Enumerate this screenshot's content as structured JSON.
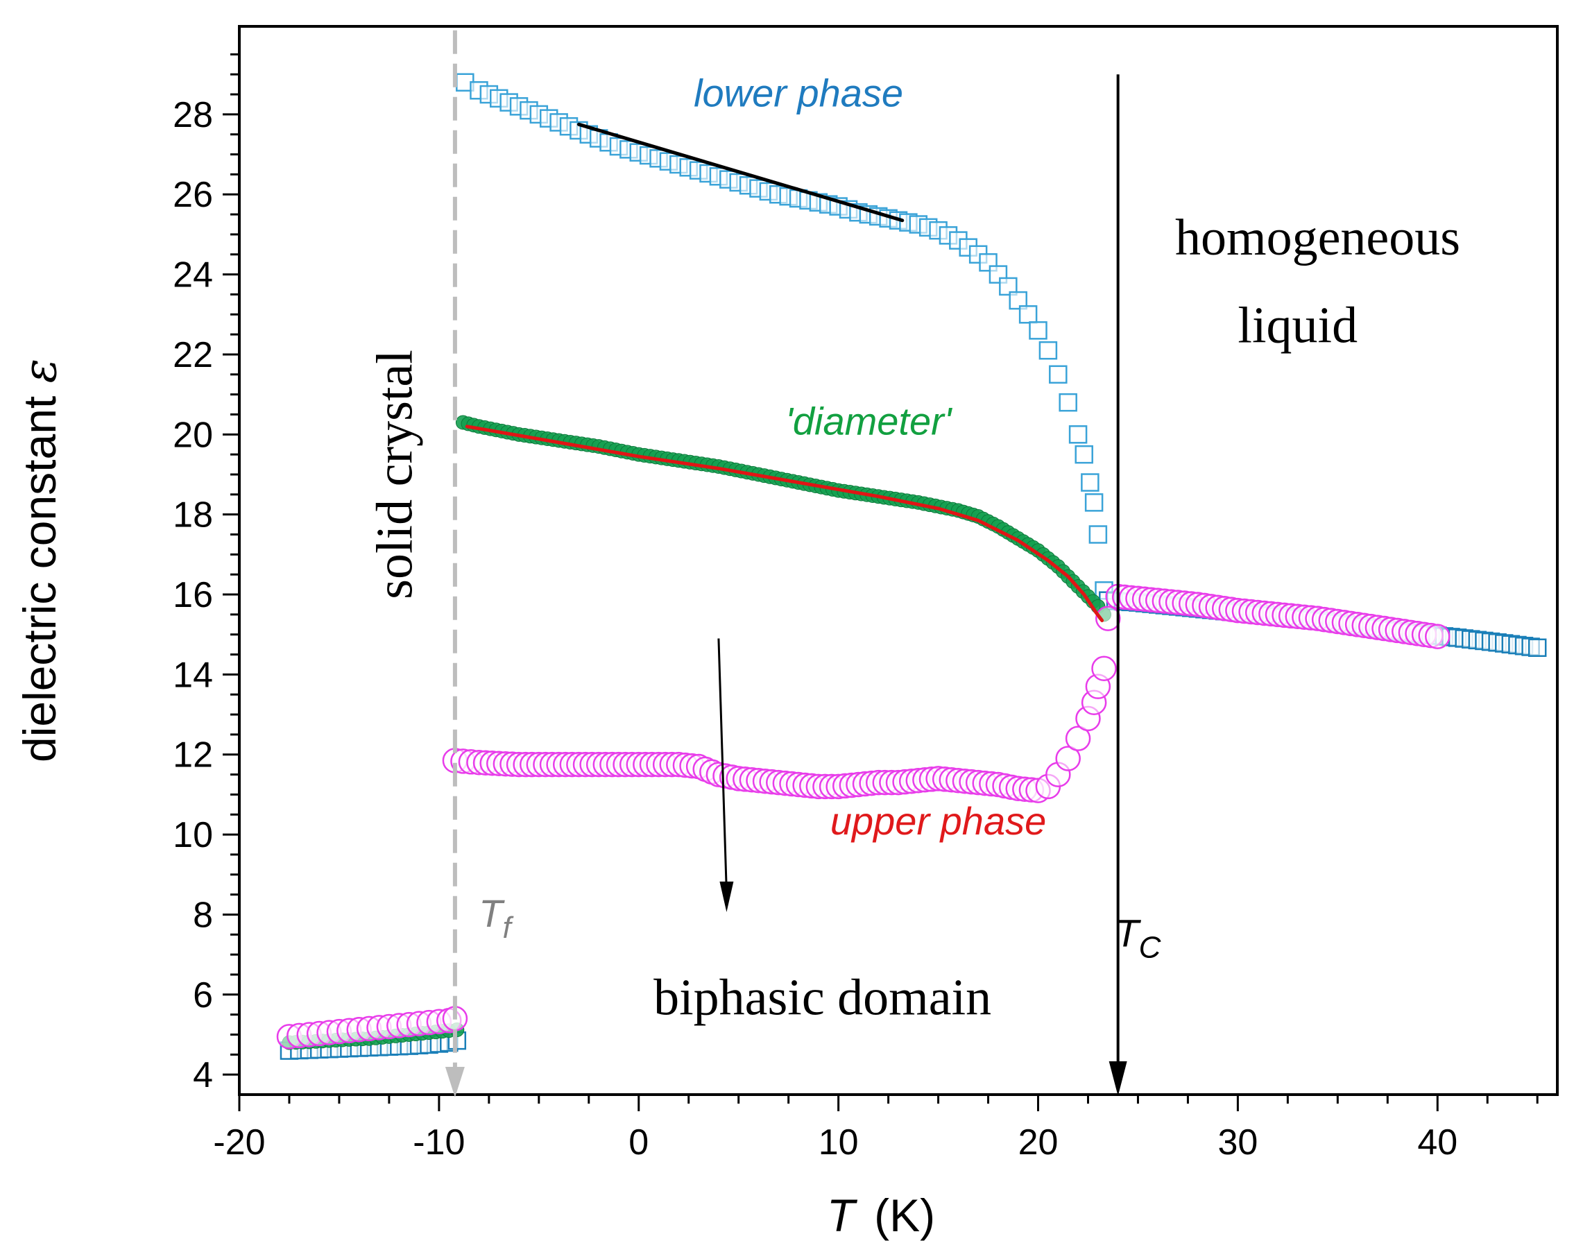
{
  "chart_data": {
    "type": "scatter",
    "xlabel": "T",
    "xlabel_unit": "(K)",
    "ylabel": "dielectric constant ",
    "ylabel_symbol": "ε",
    "xlim": [
      -20,
      46
    ],
    "ylim": [
      3.5,
      30.2
    ],
    "xticks": [
      -20,
      -10,
      0,
      10,
      20,
      30,
      40
    ],
    "xtick_labels": [
      "-20",
      "-10",
      "0",
      "10",
      "20",
      "30",
      "40"
    ],
    "yticks": [
      4,
      6,
      8,
      10,
      12,
      14,
      16,
      18,
      20,
      22,
      24,
      26,
      28
    ],
    "ytick_labels": [
      "4",
      "6",
      "8",
      "10",
      "12",
      "14",
      "16",
      "18",
      "20",
      "22",
      "24",
      "26",
      "28"
    ],
    "colors": {
      "lower": "#3aa3d8",
      "lower_liquid": "#1a7fb8",
      "diameter": "#14a050",
      "upper": "#e83cea",
      "fit": "#e01515",
      "tf_line": "#bdbdbd",
      "tc_line": "#000000",
      "lower_label": "#1f7bbf",
      "diameter_label": "#12a040",
      "upper_label": "#e0191b",
      "tf_label": "#808080"
    },
    "series": [
      {
        "name": "lower phase",
        "marker": "square",
        "points": [
          [
            -8.7,
            28.8
          ],
          [
            -8,
            28.6
          ],
          [
            -7,
            28.4
          ],
          [
            -6,
            28.2
          ],
          [
            -5,
            28.0
          ],
          [
            -4,
            27.8
          ],
          [
            -3,
            27.6
          ],
          [
            -2,
            27.4
          ],
          [
            -1,
            27.2
          ],
          [
            0,
            27.05
          ],
          [
            1,
            26.9
          ],
          [
            2,
            26.75
          ],
          [
            3,
            26.6
          ],
          [
            4,
            26.45
          ],
          [
            5,
            26.3
          ],
          [
            6,
            26.15
          ],
          [
            7,
            26.0
          ],
          [
            8,
            25.9
          ],
          [
            9,
            25.8
          ],
          [
            10,
            25.7
          ],
          [
            11,
            25.55
          ],
          [
            12,
            25.45
          ],
          [
            13,
            25.35
          ],
          [
            14,
            25.25
          ],
          [
            15,
            25.1
          ],
          [
            16,
            24.85
          ],
          [
            17,
            24.5
          ],
          [
            17.5,
            24.3
          ],
          [
            18,
            24.0
          ],
          [
            18.5,
            23.7
          ],
          [
            19,
            23.35
          ],
          [
            19.5,
            23.0
          ],
          [
            20,
            22.6
          ],
          [
            20.5,
            22.1
          ],
          [
            21,
            21.5
          ],
          [
            21.5,
            20.8
          ],
          [
            22,
            20.0
          ],
          [
            22.3,
            19.5
          ],
          [
            22.6,
            18.8
          ],
          [
            22.8,
            18.3
          ],
          [
            23,
            17.5
          ],
          [
            23.3,
            16.1
          ]
        ]
      },
      {
        "name": "lower phase (liquid)",
        "marker": "square",
        "points": [
          [
            23.5,
            15.85
          ],
          [
            25,
            15.8
          ],
          [
            27,
            15.7
          ],
          [
            29,
            15.6
          ],
          [
            31,
            15.5
          ],
          [
            33,
            15.4
          ],
          [
            35,
            15.28
          ],
          [
            37,
            15.15
          ],
          [
            39,
            15.02
          ],
          [
            41,
            14.92
          ],
          [
            43,
            14.8
          ],
          [
            45,
            14.67
          ]
        ]
      },
      {
        "name": "diameter",
        "marker": "dot",
        "points": [
          [
            -8.8,
            20.3
          ],
          [
            -8,
            20.2
          ],
          [
            -6,
            20.0
          ],
          [
            -4,
            19.85
          ],
          [
            -2,
            19.7
          ],
          [
            0,
            19.5
          ],
          [
            2,
            19.35
          ],
          [
            4,
            19.2
          ],
          [
            6,
            19.0
          ],
          [
            8,
            18.8
          ],
          [
            10,
            18.6
          ],
          [
            12,
            18.45
          ],
          [
            14,
            18.3
          ],
          [
            16,
            18.1
          ],
          [
            17,
            17.95
          ],
          [
            18,
            17.7
          ],
          [
            19,
            17.4
          ],
          [
            20,
            17.1
          ],
          [
            21,
            16.7
          ],
          [
            22,
            16.2
          ],
          [
            23,
            15.7
          ],
          [
            23.3,
            15.5
          ]
        ]
      },
      {
        "name": "upper phase",
        "marker": "circle",
        "points": [
          [
            -9.2,
            11.85
          ],
          [
            -8,
            11.8
          ],
          [
            -6,
            11.75
          ],
          [
            -4,
            11.75
          ],
          [
            -2,
            11.75
          ],
          [
            0,
            11.75
          ],
          [
            2,
            11.75
          ],
          [
            3,
            11.7
          ],
          [
            4,
            11.5
          ],
          [
            5,
            11.4
          ],
          [
            6,
            11.35
          ],
          [
            7,
            11.3
          ],
          [
            8,
            11.25
          ],
          [
            9,
            11.2
          ],
          [
            10,
            11.2
          ],
          [
            11,
            11.25
          ],
          [
            12,
            11.3
          ],
          [
            13,
            11.3
          ],
          [
            14,
            11.35
          ],
          [
            15,
            11.4
          ],
          [
            16,
            11.35
          ],
          [
            17,
            11.3
          ],
          [
            18,
            11.25
          ],
          [
            19,
            11.15
          ],
          [
            20,
            11.1
          ],
          [
            20.5,
            11.2
          ],
          [
            21,
            11.5
          ],
          [
            21.5,
            11.9
          ],
          [
            22,
            12.4
          ],
          [
            22.5,
            12.9
          ],
          [
            22.8,
            13.3
          ],
          [
            23,
            13.7
          ],
          [
            23.3,
            14.15
          ],
          [
            23.5,
            15.4
          ]
        ]
      },
      {
        "name": "upper phase (liquid)",
        "marker": "circle",
        "points": [
          [
            24,
            15.95
          ],
          [
            26,
            15.85
          ],
          [
            28,
            15.75
          ],
          [
            30,
            15.6
          ],
          [
            32,
            15.5
          ],
          [
            34,
            15.4
          ],
          [
            36,
            15.25
          ],
          [
            38,
            15.1
          ],
          [
            40,
            14.95
          ]
        ]
      },
      {
        "name": "solid lower",
        "marker": "square",
        "points": [
          [
            -17.5,
            4.6
          ],
          [
            -16.5,
            4.62
          ],
          [
            -15.5,
            4.64
          ],
          [
            -14.5,
            4.66
          ],
          [
            -13.5,
            4.68
          ],
          [
            -12.5,
            4.7
          ],
          [
            -11.5,
            4.72
          ],
          [
            -10.5,
            4.75
          ],
          [
            -9.5,
            4.8
          ],
          [
            -9.1,
            4.85
          ]
        ]
      },
      {
        "name": "solid diameter",
        "marker": "dot",
        "points": [
          [
            -17.5,
            4.8
          ],
          [
            -16.5,
            4.82
          ],
          [
            -15.5,
            4.85
          ],
          [
            -14.5,
            4.88
          ],
          [
            -13.5,
            4.9
          ],
          [
            -12.5,
            4.95
          ],
          [
            -11.5,
            5.0
          ],
          [
            -10.5,
            5.05
          ],
          [
            -9.5,
            5.1
          ],
          [
            -9.1,
            5.12
          ]
        ]
      },
      {
        "name": "solid upper",
        "marker": "circle",
        "points": [
          [
            -17.5,
            4.95
          ],
          [
            -16.5,
            5.0
          ],
          [
            -15.5,
            5.05
          ],
          [
            -14.5,
            5.1
          ],
          [
            -13.5,
            5.15
          ],
          [
            -12.5,
            5.2
          ],
          [
            -11.5,
            5.25
          ],
          [
            -10.5,
            5.3
          ],
          [
            -9.5,
            5.35
          ],
          [
            -9.2,
            5.4
          ]
        ]
      }
    ],
    "fits": [
      {
        "name": "lower linear fit",
        "color": "#000000",
        "points": [
          [
            -3,
            27.75
          ],
          [
            13.2,
            25.35
          ]
        ]
      },
      {
        "name": "diameter fit",
        "color": "#e01515",
        "points": [
          [
            -8.6,
            20.2
          ],
          [
            -4,
            19.8
          ],
          [
            0,
            19.45
          ],
          [
            4,
            19.15
          ],
          [
            8,
            18.8
          ],
          [
            12,
            18.45
          ],
          [
            15,
            18.15
          ],
          [
            17,
            17.85
          ],
          [
            19,
            17.35
          ],
          [
            20.5,
            16.85
          ],
          [
            21.5,
            16.45
          ],
          [
            22.3,
            16.0
          ],
          [
            22.9,
            15.55
          ],
          [
            23.2,
            15.35
          ]
        ]
      }
    ],
    "annotations": {
      "lower_phase": "lower phase",
      "diameter": "'diameter'",
      "upper_phase": "upper phase",
      "solid_crystal": "solid crystal",
      "homogeneous_line1": "homogeneous",
      "homogeneous_line2": "liquid",
      "biphasic": "biphasic domain",
      "tf_main": "T",
      "tf_sub": "f",
      "tc_main": "T",
      "tc_sub": "C"
    },
    "vlines": {
      "tf": {
        "x": -9.2,
        "from_y": 30.1,
        "to_y": 3.5
      },
      "tc": {
        "x": 24.0,
        "from_y": 29.0,
        "to_y": 3.5
      },
      "down_arrow": {
        "x1": 4.0,
        "y1": 14.9,
        "x2": 4.4,
        "y2": 8.2
      }
    },
    "annotation_anchors": {
      "lower_phase": [
        8,
        28.2
      ],
      "diameter": [
        11.5,
        20.0
      ],
      "upper_phase": [
        15,
        10.0
      ],
      "homogeneous_line1": [
        34,
        24.5
      ],
      "homogeneous_line2": [
        33,
        22.3
      ],
      "biphasic": [
        9.2,
        5.5
      ],
      "solid_crystal": [
        -12.0,
        19.0
      ],
      "tf": [
        -7.2,
        7.7
      ],
      "tc": [
        25.0,
        7.2
      ]
    }
  }
}
